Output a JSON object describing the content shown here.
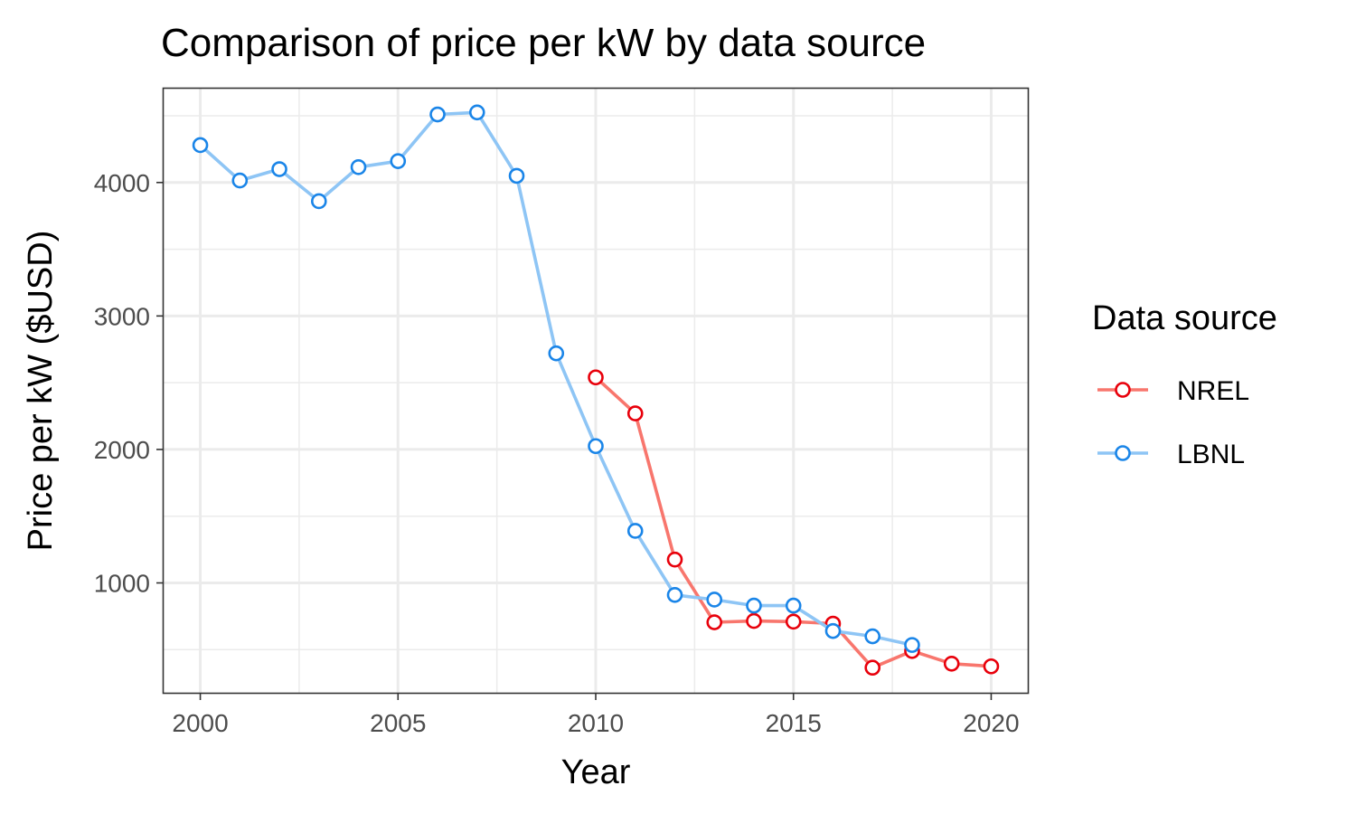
{
  "chart_data": {
    "type": "line",
    "title": "Comparison of price per kW by data source",
    "xlabel": "Year",
    "ylabel": "Price per kW ($USD)",
    "xlim": [
      1999.05,
      2020.95
    ],
    "ylim": [
      170,
      4710
    ],
    "x_ticks": [
      2000,
      2005,
      2010,
      2015,
      2020
    ],
    "y_ticks": [
      1000,
      2000,
      3000,
      4000
    ],
    "grid": true,
    "legend": {
      "title": "Data source",
      "position": "right"
    },
    "series": [
      {
        "name": "NREL",
        "line_color": "#F8766D",
        "point_color": "#E8000B",
        "points": [
          [
            2010,
            2540
          ],
          [
            2011,
            2270
          ],
          [
            2012,
            1175
          ],
          [
            2013,
            705
          ],
          [
            2014,
            715
          ],
          [
            2015,
            710
          ],
          [
            2016,
            695
          ],
          [
            2017,
            365
          ],
          [
            2018,
            490
          ],
          [
            2019,
            395
          ],
          [
            2020,
            375
          ]
        ]
      },
      {
        "name": "LBNL",
        "line_color": "#8EC5F5",
        "point_color": "#1A85E8",
        "points": [
          [
            2000,
            4280
          ],
          [
            2001,
            4015
          ],
          [
            2002,
            4100
          ],
          [
            2003,
            3860
          ],
          [
            2004,
            4115
          ],
          [
            2005,
            4160
          ],
          [
            2006,
            4510
          ],
          [
            2007,
            4525
          ],
          [
            2008,
            4050
          ],
          [
            2009,
            2720
          ],
          [
            2010,
            2025
          ],
          [
            2011,
            1390
          ],
          [
            2012,
            910
          ],
          [
            2013,
            875
          ],
          [
            2014,
            830
          ],
          [
            2015,
            830
          ],
          [
            2016,
            640
          ],
          [
            2017,
            600
          ],
          [
            2018,
            535
          ]
        ]
      }
    ]
  }
}
